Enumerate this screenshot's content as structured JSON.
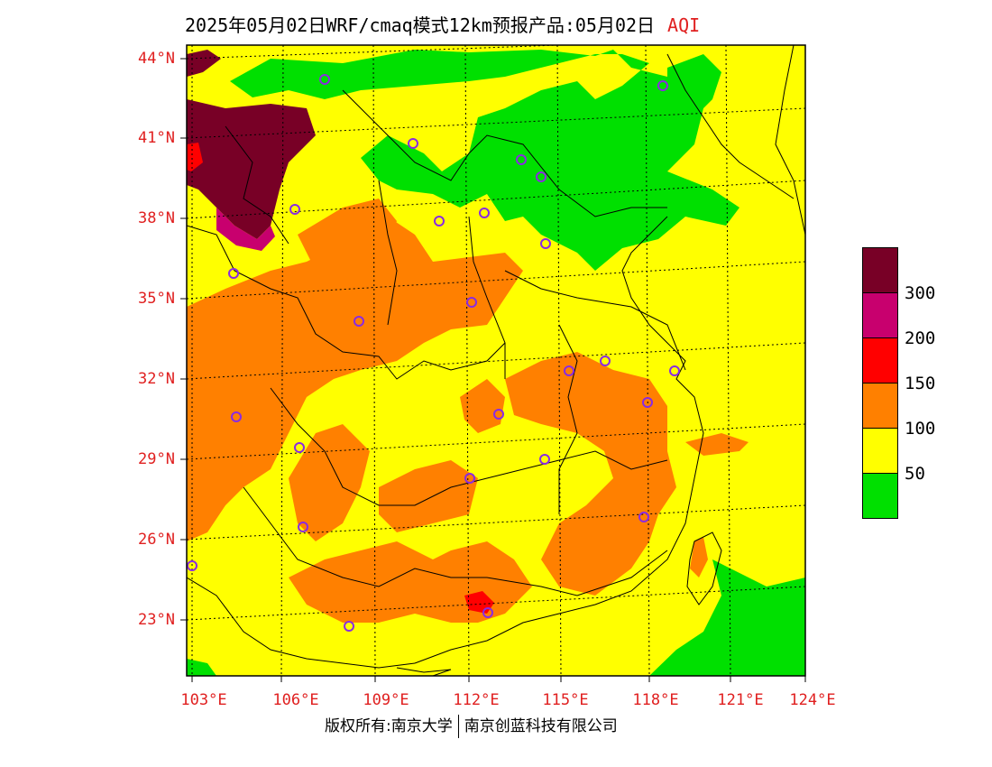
{
  "title": {
    "main": "2025年05月02日WRF/cmaq模式12km预报产品:05月02日",
    "variable": "AQI"
  },
  "map": {
    "lat_labels": [
      "44°N",
      "41°N",
      "38°N",
      "35°N",
      "32°N",
      "29°N",
      "26°N",
      "23°N"
    ],
    "lon_labels": [
      "103°E",
      "106°E",
      "109°E",
      "112°E",
      "115°E",
      "118°E",
      "121°E",
      "124°E"
    ],
    "dominant_category": "50-100",
    "notable_regions": [
      {
        "area": "northwest (Inner Mongolia / Ningxia)",
        "category": ">300"
      },
      {
        "area": "North China plain north (Hebei/Beijing)",
        "category": "0-50"
      },
      {
        "area": "Sichuan basin, Shaanxi, Henan, Hunan, Jiangxi, Guangdong interior",
        "category": "100-150"
      },
      {
        "area": "Guangdong near 23°N 112°E",
        "category": "150-200"
      },
      {
        "area": "northern Bay of Bengal / East China Sea coast",
        "category": "0-50"
      }
    ],
    "city_markers": 26
  },
  "legend": {
    "labels": [
      "300",
      "200",
      "150",
      "100",
      "50"
    ],
    "colors": [
      "#780026",
      "#c8006e",
      "#ff0000",
      "#ff8000",
      "#ffff00",
      "#00e000"
    ]
  },
  "colors": {
    "very_unhealthy": "#780026",
    "unhealthy_high": "#c8006e",
    "unhealthy": "#ff0000",
    "sensitive": "#ff8000",
    "moderate": "#ffff00",
    "good": "#00e000",
    "label_red": "#e02020",
    "marker_purple": "#8a2be2"
  },
  "copyright": {
    "left": "版权所有:南京大学",
    "right": "南京创蓝科技有限公司"
  }
}
